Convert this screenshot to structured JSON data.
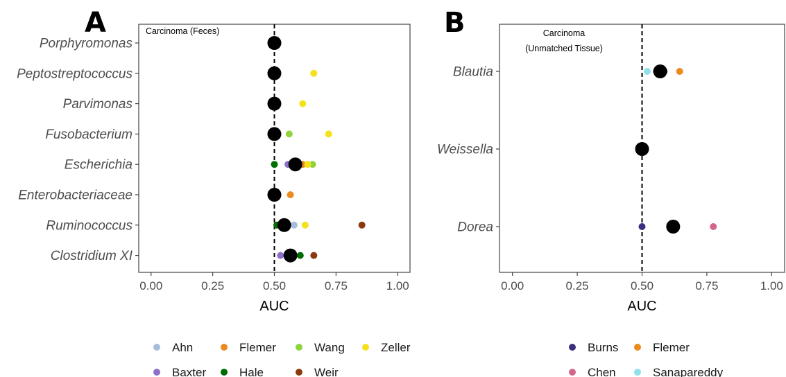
{
  "chart_data": [
    {
      "type": "scatter",
      "panel_label": "A",
      "annotation": [
        "Carcinoma (Feces)"
      ],
      "xlabel": "AUC",
      "xlim": [
        -0.05,
        1.05
      ],
      "xticks": [
        "0.00",
        "0.25",
        "0.50",
        "0.75",
        "1.00"
      ],
      "reference_line": 0.5,
      "categories": [
        "Porphyromonas",
        "Peptostreptococcus",
        "Parvimonas",
        "Fusobacterium",
        "Escherichia",
        "Enterobacteriaceae",
        "Ruminococcus",
        "Clostridium XI"
      ],
      "series": [
        {
          "name": "Ahn",
          "color": "#a6bddb",
          "points": [
            [
              "Ruminococcus",
              0.58
            ]
          ]
        },
        {
          "name": "Baxter",
          "color": "#8e6fc9",
          "points": [
            [
              "Escherichia",
              0.555
            ],
            [
              "Clostridium XI",
              0.525
            ]
          ]
        },
        {
          "name": "Flemer",
          "color": "#ea8a1f",
          "points": [
            [
              "Escherichia",
              0.615
            ],
            [
              "Enterobacteriaceae",
              0.565
            ]
          ]
        },
        {
          "name": "Hale",
          "color": "#006d00",
          "points": [
            [
              "Escherichia",
              0.5
            ],
            [
              "Ruminococcus",
              0.51
            ],
            [
              "Clostridium XI",
              0.605
            ]
          ]
        },
        {
          "name": "Wang",
          "color": "#8fd43c",
          "points": [
            [
              "Fusobacterium",
              0.56
            ],
            [
              "Escherichia",
              0.655
            ]
          ]
        },
        {
          "name": "Weir",
          "color": "#8b3a0f",
          "points": [
            [
              "Ruminococcus",
              0.855
            ],
            [
              "Clostridium XI",
              0.66
            ]
          ]
        },
        {
          "name": "Zeller",
          "color": "#f5e21b",
          "points": [
            [
              "Peptostreptococcus",
              0.66
            ],
            [
              "Parvimonas",
              0.615
            ],
            [
              "Fusobacterium",
              0.72
            ],
            [
              "Escherichia",
              0.635
            ],
            [
              "Ruminococcus",
              0.625
            ]
          ]
        }
      ],
      "summary": {
        "color": "#000000",
        "points": [
          [
            "Porphyromonas",
            0.5
          ],
          [
            "Peptostreptococcus",
            0.5
          ],
          [
            "Parvimonas",
            0.5
          ],
          [
            "Fusobacterium",
            0.5
          ],
          [
            "Escherichia",
            0.585
          ],
          [
            "Enterobacteriaceae",
            0.5
          ],
          [
            "Ruminococcus",
            0.54
          ],
          [
            "Clostridium XI",
            0.565
          ]
        ]
      }
    },
    {
      "type": "scatter",
      "panel_label": "B",
      "annotation": [
        "Carcinoma",
        "(Unmatched Tissue)"
      ],
      "xlabel": "AUC",
      "xlim": [
        -0.05,
        1.05
      ],
      "xticks": [
        "0.00",
        "0.25",
        "0.50",
        "0.75",
        "1.00"
      ],
      "reference_line": 0.5,
      "categories": [
        "Blautia",
        "Weissella",
        "Dorea"
      ],
      "series": [
        {
          "name": "Burns",
          "color": "#3b2f7e",
          "points": [
            [
              "Blautia",
              0.585
            ],
            [
              "Dorea",
              0.5
            ]
          ]
        },
        {
          "name": "Chen",
          "color": "#d4668a",
          "points": [
            [
              "Blautia",
              0.555
            ],
            [
              "Dorea",
              0.775
            ]
          ]
        },
        {
          "name": "Flemer",
          "color": "#ea8a1f",
          "points": [
            [
              "Blautia",
              0.645
            ]
          ]
        },
        {
          "name": "Sanapareddy",
          "color": "#8ee0ec",
          "points": [
            [
              "Blautia",
              0.52
            ]
          ]
        }
      ],
      "summary": {
        "color": "#000000",
        "points": [
          [
            "Blautia",
            0.57
          ],
          [
            "Weissella",
            0.5
          ],
          [
            "Dorea",
            0.62
          ]
        ]
      }
    }
  ],
  "legend_a": [
    "Ahn",
    "Flemer",
    "Wang",
    "Zeller",
    "Baxter",
    "Hale",
    "Weir"
  ],
  "legend_b": [
    "Burns",
    "Flemer",
    "Chen",
    "Sanapareddy"
  ]
}
